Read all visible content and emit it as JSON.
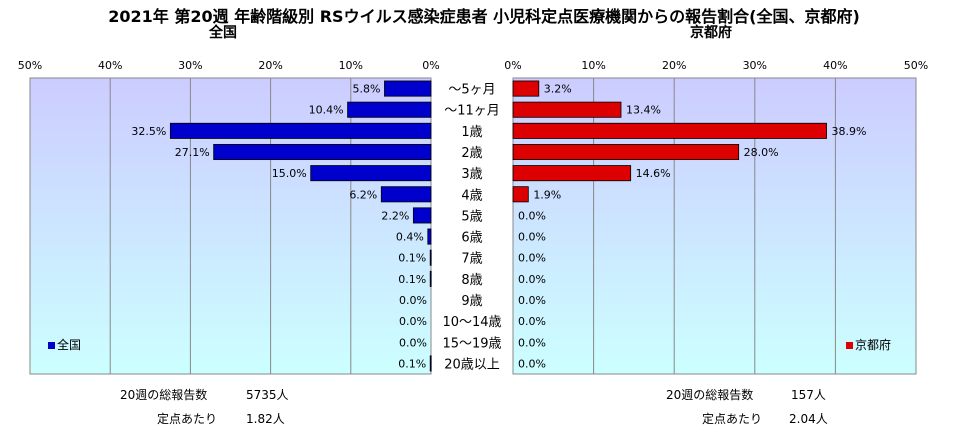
{
  "title": "2021年 第20週 年齢階級別 RSウイルス感染症患者 小児科定点医療機関からの報告割合(全国、京都府)",
  "chart_data": {
    "type": "bar",
    "orientation": "horizontal",
    "categories": [
      "～5ヶ月",
      "～11ヶ月",
      "1歳",
      "2歳",
      "3歳",
      "4歳",
      "5歳",
      "6歳",
      "7歳",
      "8歳",
      "9歳",
      "10～14歳",
      "15～19歳",
      "20歳以上"
    ],
    "ticks": [
      "50%",
      "40%",
      "30%",
      "20%",
      "10%",
      "0%"
    ],
    "right_ticks": [
      "0%",
      "10%",
      "20%",
      "30%",
      "40%",
      "50%"
    ],
    "xlim": [
      0,
      50
    ],
    "series": [
      {
        "name": "全国",
        "color": "#0000cc",
        "values": [
          5.8,
          10.4,
          32.5,
          27.1,
          15.0,
          6.2,
          2.2,
          0.4,
          0.1,
          0.1,
          0.0,
          0.0,
          0.0,
          0.1
        ],
        "labels": [
          "5.8%",
          "10.4%",
          "32.5%",
          "27.1%",
          "15.0%",
          "6.2%",
          "2.2%",
          "0.4%",
          "0.1%",
          "0.1%",
          "0.0%",
          "0.0%",
          "0.0%",
          "0.1%"
        ]
      },
      {
        "name": "京都府",
        "color": "#dd0000",
        "values": [
          3.2,
          13.4,
          38.9,
          28.0,
          14.6,
          1.9,
          0.0,
          0.0,
          0.0,
          0.0,
          0.0,
          0.0,
          0.0,
          0.0
        ],
        "labels": [
          "3.2%",
          "13.4%",
          "38.9%",
          "28.0%",
          "14.6%",
          "1.9%",
          "0.0%",
          "0.0%",
          "0.0%",
          "0.0%",
          "0.0%",
          "0.0%",
          "0.0%",
          "0.0%"
        ]
      }
    ]
  },
  "left_panel": {
    "name": "全国",
    "total_label": "20週の総報告数",
    "total_value": "5735人",
    "per_label": "定点あたり",
    "per_value": "1.82人"
  },
  "right_panel": {
    "name": "京都府",
    "total_label": "20週の総報告数",
    "total_value": "157人",
    "per_label": "定点あたり",
    "per_value": "2.04人"
  },
  "colors": {
    "bg_top": "#ccccff",
    "bg_bottom": "#ccffff",
    "grid": "#888888",
    "nat_bar": "#0000cc",
    "kyo_bar": "#dd0000"
  }
}
